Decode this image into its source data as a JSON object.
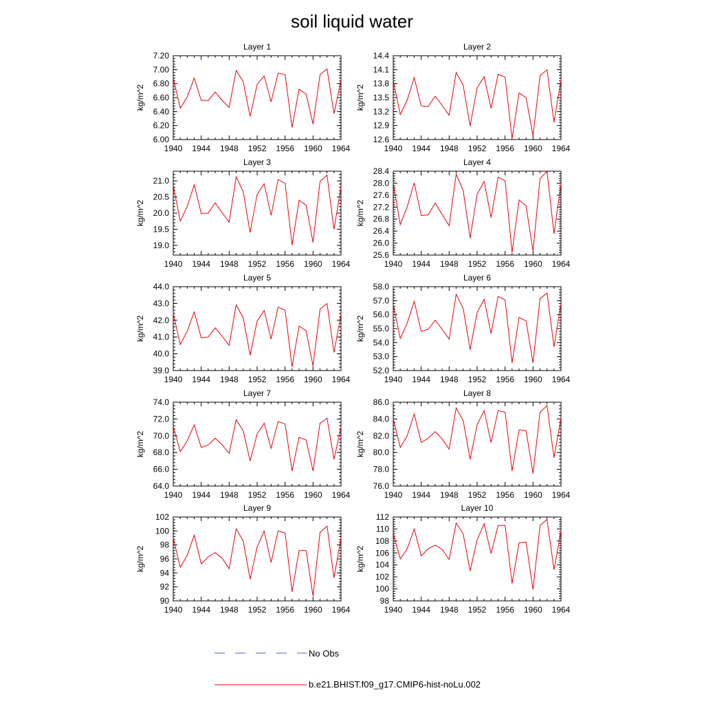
{
  "title": "soil liquid water",
  "legend": {
    "obs_label": "No Obs",
    "model_label": "b.e21.BHIST.f09_g17.CMIP6-hist-noLu.002",
    "obs_color": "#4a5bd6",
    "model_color": "#e8000b"
  },
  "colors": {
    "series": "#e8000b",
    "axes": "#000000"
  },
  "chart_data": [
    {
      "type": "line",
      "title": "Layer 1",
      "ylabel": "kg/m^2",
      "x": [
        1940,
        1941,
        1942,
        1943,
        1944,
        1945,
        1946,
        1947,
        1948,
        1949,
        1950,
        1951,
        1952,
        1953,
        1954,
        1955,
        1956,
        1957,
        1958,
        1959,
        1960,
        1961,
        1962,
        1963,
        1964
      ],
      "xlim": [
        1940,
        1964
      ],
      "xticks": [
        "1940",
        "1944",
        "1948",
        "1952",
        "1956",
        "1960",
        "1964"
      ],
      "ylim": [
        6.0,
        7.2
      ],
      "yticks": [
        "6.00",
        "6.20",
        "6.40",
        "6.60",
        "6.80",
        "7.00",
        "7.20"
      ],
      "series": [
        {
          "name": "b.e21.BHIST.f09_g17.CMIP6-hist-noLu.002",
          "values": [
            6.88,
            6.45,
            6.61,
            6.88,
            6.56,
            6.56,
            6.68,
            6.56,
            6.46,
            6.99,
            6.83,
            6.33,
            6.79,
            6.91,
            6.54,
            6.95,
            6.93,
            6.17,
            6.72,
            6.65,
            6.22,
            6.93,
            7.01,
            6.37,
            6.85
          ]
        }
      ]
    },
    {
      "type": "line",
      "title": "Layer 2",
      "ylabel": "kg/m^2",
      "x": [
        1940,
        1941,
        1942,
        1943,
        1944,
        1945,
        1946,
        1947,
        1948,
        1949,
        1950,
        1951,
        1952,
        1953,
        1954,
        1955,
        1956,
        1957,
        1958,
        1959,
        1960,
        1961,
        1962,
        1963,
        1964
      ],
      "xlim": [
        1940,
        1964
      ],
      "xticks": [
        "1940",
        "1944",
        "1948",
        "1952",
        "1956",
        "1960",
        "1964"
      ],
      "ylim": [
        12.6,
        14.4
      ],
      "yticks": [
        "12.6",
        "12.9",
        "13.2",
        "13.5",
        "13.8",
        "14.1",
        "14.4"
      ],
      "series": [
        {
          "name": "b.e21.BHIST.f09_g17.CMIP6-hist-noLu.002",
          "values": [
            13.87,
            13.14,
            13.45,
            13.93,
            13.32,
            13.31,
            13.53,
            13.33,
            13.12,
            14.04,
            13.77,
            12.89,
            13.71,
            13.95,
            13.27,
            14.0,
            13.94,
            12.62,
            13.6,
            13.5,
            12.68,
            13.97,
            14.1,
            12.97,
            13.88
          ]
        }
      ]
    },
    {
      "type": "line",
      "title": "Layer 3",
      "ylabel": "kg/m^2",
      "x": [
        1940,
        1941,
        1942,
        1943,
        1944,
        1945,
        1946,
        1947,
        1948,
        1949,
        1950,
        1951,
        1952,
        1953,
        1954,
        1955,
        1956,
        1957,
        1958,
        1959,
        1960,
        1961,
        1962,
        1963,
        1964
      ],
      "xlim": [
        1940,
        1964
      ],
      "xticks": [
        "1940",
        "1944",
        "1948",
        "1952",
        "1956",
        "1960",
        "1964"
      ],
      "ylim": [
        18.7,
        21.3
      ],
      "yticks": [
        "19.0",
        "19.5",
        "20.0",
        "20.5",
        "21.0"
      ],
      "series": [
        {
          "name": "b.e21.BHIST.f09_g17.CMIP6-hist-noLu.002",
          "values": [
            20.85,
            19.75,
            20.21,
            20.88,
            19.99,
            20.0,
            20.32,
            20.01,
            19.72,
            21.12,
            20.67,
            19.4,
            20.58,
            20.91,
            19.93,
            21.04,
            20.93,
            19.01,
            20.4,
            20.25,
            19.09,
            20.98,
            21.18,
            19.5,
            20.8
          ]
        }
      ]
    },
    {
      "type": "line",
      "title": "Layer 4",
      "ylabel": "kg/m^2",
      "x": [
        1940,
        1941,
        1942,
        1943,
        1944,
        1945,
        1946,
        1947,
        1948,
        1949,
        1950,
        1951,
        1952,
        1953,
        1954,
        1955,
        1956,
        1957,
        1958,
        1959,
        1960,
        1961,
        1962,
        1963,
        1964
      ],
      "xlim": [
        1940,
        1964
      ],
      "xticks": [
        "1940",
        "1944",
        "1948",
        "1952",
        "1956",
        "1960",
        "1964"
      ],
      "ylim": [
        25.6,
        28.4
      ],
      "yticks": [
        "25.6",
        "26.0",
        "26.4",
        "26.8",
        "27.2",
        "27.6",
        "28.0",
        "28.4"
      ],
      "series": [
        {
          "name": "b.e21.BHIST.f09_g17.CMIP6-hist-noLu.002",
          "values": [
            28.0,
            26.62,
            27.21,
            28.01,
            26.92,
            26.94,
            27.34,
            26.95,
            26.58,
            28.3,
            27.76,
            26.17,
            27.63,
            28.06,
            26.85,
            28.2,
            28.08,
            25.69,
            27.44,
            27.24,
            25.74,
            28.15,
            28.4,
            26.31,
            27.98
          ]
        }
      ]
    },
    {
      "type": "line",
      "title": "Layer 5",
      "ylabel": "kg/m^2",
      "x": [
        1940,
        1941,
        1942,
        1943,
        1944,
        1945,
        1946,
        1947,
        1948,
        1949,
        1950,
        1951,
        1952,
        1953,
        1954,
        1955,
        1956,
        1957,
        1958,
        1959,
        1960,
        1961,
        1962,
        1963,
        1964
      ],
      "xlim": [
        1940,
        1964
      ],
      "xticks": [
        "1940",
        "1944",
        "1948",
        "1952",
        "1956",
        "1960",
        "1964"
      ],
      "ylim": [
        39.0,
        44.0
      ],
      "yticks": [
        "39.0",
        "40.0",
        "41.0",
        "42.0",
        "43.0",
        "44.0"
      ],
      "series": [
        {
          "name": "b.e21.BHIST.f09_g17.CMIP6-hist-noLu.002",
          "values": [
            42.4,
            40.55,
            41.35,
            42.5,
            40.95,
            41.0,
            41.55,
            41.05,
            40.5,
            42.92,
            42.15,
            39.92,
            41.95,
            42.58,
            40.88,
            42.78,
            42.6,
            39.22,
            41.65,
            41.38,
            39.27,
            42.65,
            43.0,
            40.08,
            42.35
          ]
        }
      ]
    },
    {
      "type": "line",
      "title": "Layer 6",
      "ylabel": "kg/m^2",
      "x": [
        1940,
        1941,
        1942,
        1943,
        1944,
        1945,
        1946,
        1947,
        1948,
        1949,
        1950,
        1951,
        1952,
        1953,
        1954,
        1955,
        1956,
        1957,
        1958,
        1959,
        1960,
        1961,
        1962,
        1963,
        1964
      ],
      "xlim": [
        1940,
        1964
      ],
      "xticks": [
        "1940",
        "1944",
        "1948",
        "1952",
        "1956",
        "1960",
        "1964"
      ],
      "ylim": [
        52.0,
        58.0
      ],
      "yticks": [
        "52.0",
        "53.0",
        "54.0",
        "55.0",
        "56.0",
        "57.0",
        "58.0"
      ],
      "series": [
        {
          "name": "b.e21.BHIST.f09_g17.CMIP6-hist-noLu.002",
          "values": [
            56.7,
            54.3,
            55.4,
            56.95,
            54.8,
            54.95,
            55.6,
            54.95,
            54.25,
            57.45,
            56.45,
            53.5,
            56.15,
            57.1,
            54.65,
            57.3,
            57.05,
            52.55,
            55.8,
            55.55,
            52.55,
            57.15,
            57.55,
            53.7,
            56.8
          ]
        }
      ]
    },
    {
      "type": "line",
      "title": "Layer 7",
      "ylabel": "kg/m^2",
      "x": [
        1940,
        1941,
        1942,
        1943,
        1944,
        1945,
        1946,
        1947,
        1948,
        1949,
        1950,
        1951,
        1952,
        1953,
        1954,
        1955,
        1956,
        1957,
        1958,
        1959,
        1960,
        1961,
        1962,
        1963,
        1964
      ],
      "xlim": [
        1940,
        1964
      ],
      "xticks": [
        "1940",
        "1944",
        "1948",
        "1952",
        "1956",
        "1960",
        "1964"
      ],
      "ylim": [
        64.0,
        74.0
      ],
      "yticks": [
        "64.0",
        "66.0",
        "68.0",
        "70.0",
        "72.0",
        "74.0"
      ],
      "series": [
        {
          "name": "b.e21.BHIST.f09_g17.CMIP6-hist-noLu.002",
          "values": [
            71.1,
            68.1,
            69.4,
            71.3,
            68.6,
            68.9,
            69.7,
            68.9,
            67.9,
            71.9,
            70.6,
            67.0,
            70.2,
            71.5,
            68.5,
            71.7,
            71.4,
            65.8,
            69.8,
            69.5,
            65.8,
            71.5,
            72.1,
            67.2,
            71.0
          ]
        }
      ]
    },
    {
      "type": "line",
      "title": "Layer 8",
      "ylabel": "kg/m^2",
      "x": [
        1940,
        1941,
        1942,
        1943,
        1944,
        1945,
        1946,
        1947,
        1948,
        1949,
        1950,
        1951,
        1952,
        1953,
        1954,
        1955,
        1956,
        1957,
        1958,
        1959,
        1960,
        1961,
        1962,
        1963,
        1964
      ],
      "xlim": [
        1940,
        1964
      ],
      "xticks": [
        "1940",
        "1944",
        "1948",
        "1952",
        "1956",
        "1960",
        "1964"
      ],
      "ylim": [
        76.0,
        86.0
      ],
      "yticks": [
        "76.0",
        "78.0",
        "80.0",
        "82.0",
        "84.0",
        "86.0"
      ],
      "series": [
        {
          "name": "b.e21.BHIST.f09_g17.CMIP6-hist-noLu.002",
          "values": [
            84.0,
            80.6,
            82.0,
            84.6,
            81.2,
            81.7,
            82.5,
            81.6,
            80.4,
            85.3,
            83.8,
            79.2,
            83.3,
            85.0,
            81.2,
            85.0,
            84.8,
            77.8,
            82.7,
            82.6,
            77.5,
            84.8,
            85.6,
            79.4,
            84.1
          ]
        }
      ]
    },
    {
      "type": "line",
      "title": "Layer 9",
      "ylabel": "kg/m^2",
      "x": [
        1940,
        1941,
        1942,
        1943,
        1944,
        1945,
        1946,
        1947,
        1948,
        1949,
        1950,
        1951,
        1952,
        1953,
        1954,
        1955,
        1956,
        1957,
        1958,
        1959,
        1960,
        1961,
        1962,
        1963,
        1964
      ],
      "xlim": [
        1940,
        1964
      ],
      "xticks": [
        "1940",
        "1944",
        "1948",
        "1952",
        "1956",
        "1960",
        "1964"
      ],
      "ylim": [
        90,
        102
      ],
      "yticks": [
        "90",
        "92",
        "94",
        "96",
        "98",
        "100",
        "102"
      ],
      "series": [
        {
          "name": "b.e21.BHIST.f09_g17.CMIP6-hist-noLu.002",
          "values": [
            99.0,
            94.8,
            96.5,
            99.4,
            95.3,
            96.3,
            96.9,
            96.1,
            94.6,
            100.3,
            98.6,
            93.1,
            97.7,
            100.0,
            95.5,
            100.0,
            99.7,
            91.3,
            97.2,
            97.2,
            90.7,
            99.8,
            100.7,
            93.3,
            99.0
          ]
        }
      ]
    },
    {
      "type": "line",
      "title": "Layer 10",
      "ylabel": "kg/m^2",
      "x": [
        1940,
        1941,
        1942,
        1943,
        1944,
        1945,
        1946,
        1947,
        1948,
        1949,
        1950,
        1951,
        1952,
        1953,
        1954,
        1955,
        1956,
        1957,
        1958,
        1959,
        1960,
        1961,
        1962,
        1963,
        1964
      ],
      "xlim": [
        1940,
        1964
      ],
      "xticks": [
        "1940",
        "1944",
        "1948",
        "1952",
        "1956",
        "1960",
        "1964"
      ],
      "ylim": [
        98,
        112
      ],
      "yticks": [
        "98",
        "100",
        "102",
        "104",
        "106",
        "108",
        "110",
        "112"
      ],
      "series": [
        {
          "name": "b.e21.BHIST.f09_g17.CMIP6-hist-noLu.002",
          "values": [
            109.2,
            105.0,
            106.7,
            110.0,
            105.5,
            106.7,
            107.3,
            106.6,
            104.9,
            111.0,
            109.2,
            103.0,
            108.2,
            110.9,
            105.9,
            110.6,
            110.6,
            100.9,
            107.7,
            107.8,
            99.9,
            110.6,
            111.6,
            103.2,
            109.7
          ]
        }
      ]
    }
  ]
}
